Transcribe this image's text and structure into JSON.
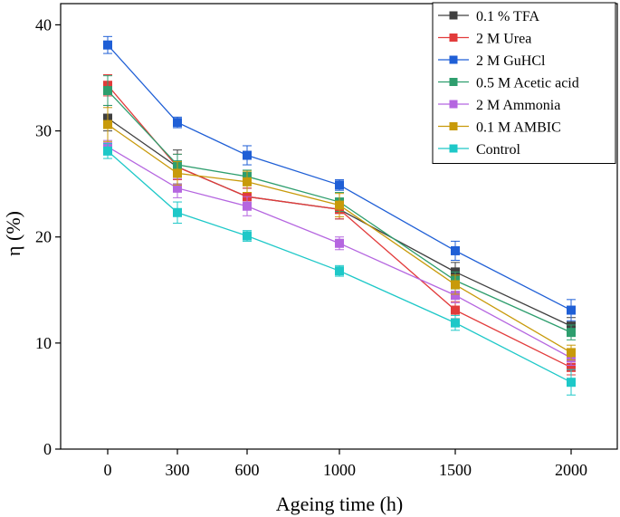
{
  "chart_data": {
    "type": "line",
    "title": "",
    "xlabel": "Ageing time  (h)",
    "ylabel": "η (%)",
    "categories": [
      "0",
      "300",
      "600",
      "1000",
      "1500",
      "2000"
    ],
    "ylim": [
      0,
      42
    ],
    "yticks": [
      0,
      10,
      20,
      30,
      40
    ],
    "legend_position": "top-right",
    "series": [
      {
        "name": "0.1 % TFA",
        "color": "#404040",
        "values": [
          31.2,
          26.6,
          23.8,
          22.6,
          16.7,
          11.6
        ],
        "errors": [
          1.2,
          1.6,
          0.8,
          0.9,
          0.9,
          0.8
        ]
      },
      {
        "name": "2 M Urea",
        "color": "#e23b3b",
        "values": [
          34.3,
          26.6,
          23.8,
          22.6,
          13.1,
          7.7
        ],
        "errors": [
          1.0,
          1.2,
          0.8,
          0.9,
          0.8,
          0.7
        ]
      },
      {
        "name": "2 M GuHCl",
        "color": "#1f5fd6",
        "values": [
          38.1,
          30.8,
          27.7,
          24.9,
          18.7,
          13.1
        ],
        "errors": [
          0.8,
          0.5,
          0.9,
          0.5,
          0.9,
          1.0
        ]
      },
      {
        "name": "0.5 M Acetic acid",
        "color": "#2e9e6e",
        "values": [
          33.8,
          26.8,
          25.7,
          23.3,
          15.9,
          11.0
        ],
        "errors": [
          1.4,
          1.0,
          0.6,
          0.9,
          0.8,
          0.7
        ]
      },
      {
        "name": "2 M Ammonia",
        "color": "#b566e0",
        "values": [
          28.5,
          24.6,
          22.9,
          19.4,
          14.5,
          8.6
        ],
        "errors": [
          0.6,
          0.9,
          0.9,
          0.6,
          0.7,
          0.7
        ]
      },
      {
        "name": "0.1 M AMBIC",
        "color": "#c89a0a",
        "values": [
          30.6,
          26.0,
          25.2,
          23.0,
          15.5,
          9.1
        ],
        "errors": [
          1.6,
          1.1,
          1.0,
          1.1,
          0.9,
          0.7
        ]
      },
      {
        "name": "Control",
        "color": "#1ec8c8",
        "values": [
          28.1,
          22.3,
          20.1,
          16.8,
          11.9,
          6.3
        ],
        "errors": [
          0.7,
          1.0,
          0.5,
          0.5,
          0.7,
          1.2
        ]
      }
    ]
  }
}
